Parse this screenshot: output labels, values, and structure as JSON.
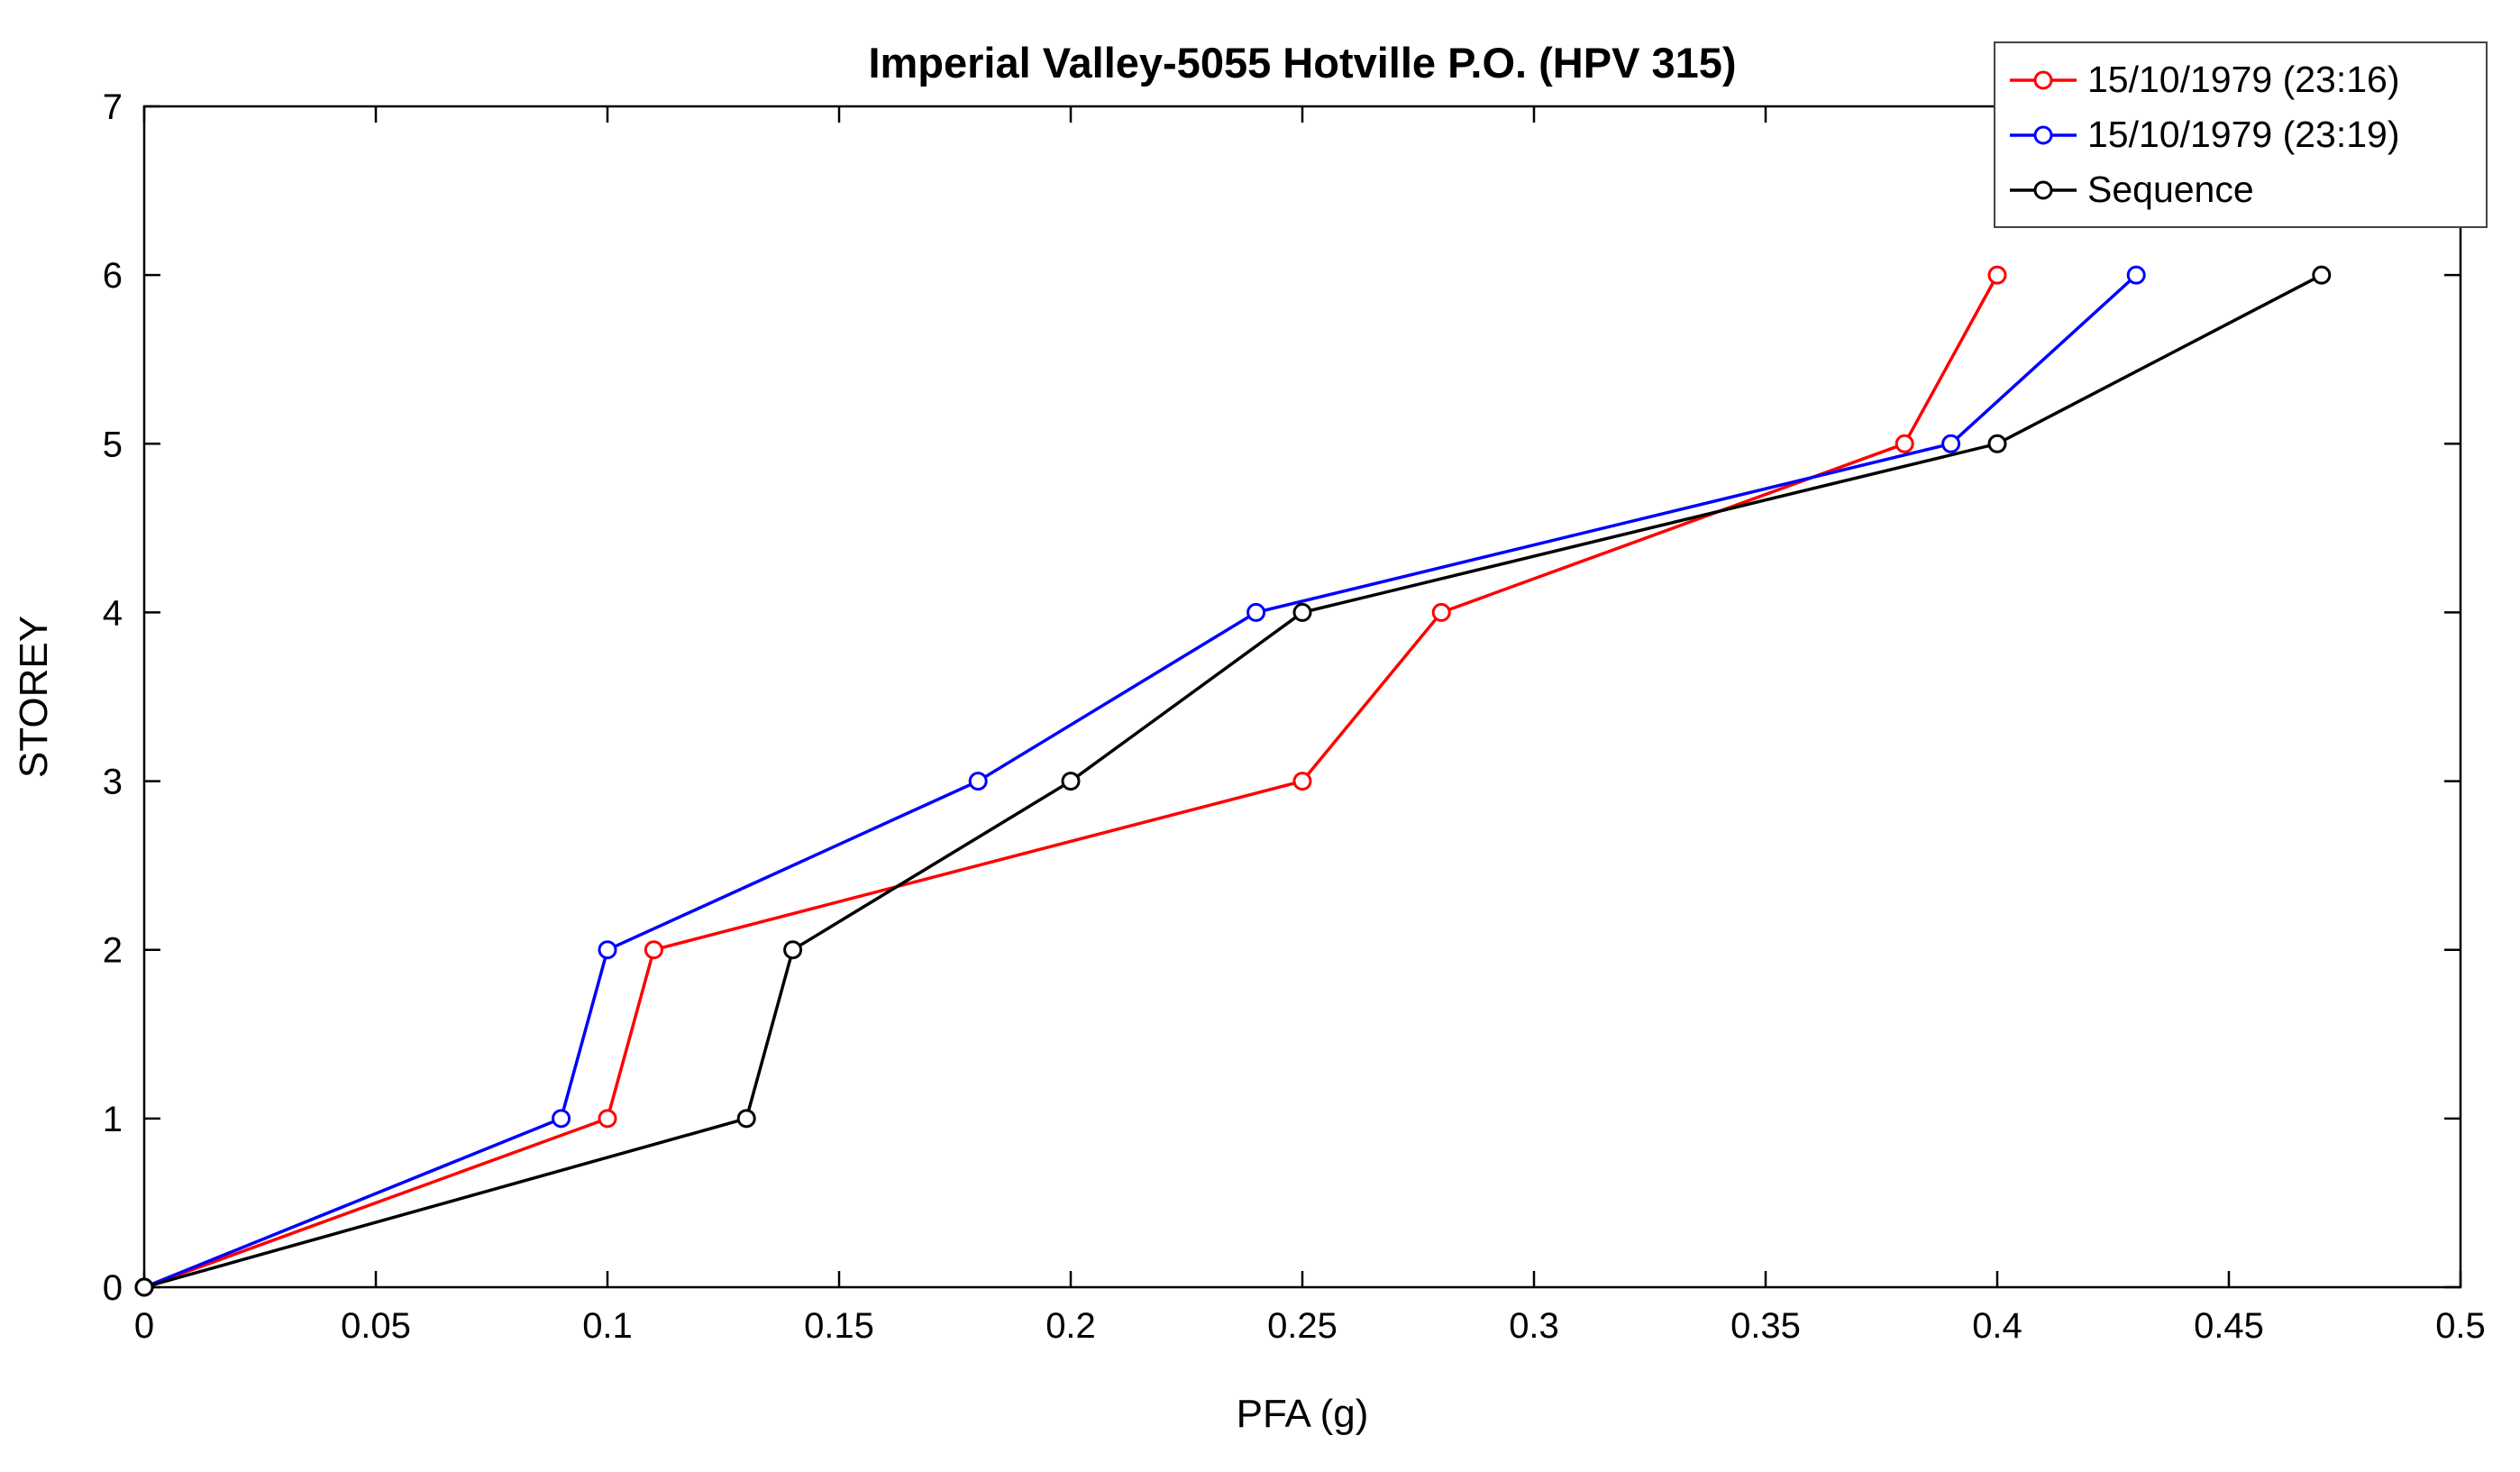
{
  "figure": {
    "title": "Imperial Valley-5055 Hotville P.O. (HPV 315)",
    "xlabel": "PFA (g)",
    "ylabel": "STOREY"
  },
  "chart_data": {
    "type": "line",
    "title": "Imperial Valley-5055 Hotville P.O. (HPV 315)",
    "xlabel": "PFA (g)",
    "ylabel": "STOREY",
    "xlim": [
      0,
      0.5
    ],
    "ylim": [
      0,
      7
    ],
    "x_ticks": [
      0,
      0.05,
      0.1,
      0.15,
      0.2,
      0.25,
      0.3,
      0.35,
      0.4,
      0.45,
      0.5
    ],
    "x_tick_labels": [
      "0",
      "0.05",
      "0.1",
      "0.15",
      "0.2",
      "0.25",
      "0.3",
      "0.35",
      "0.4",
      "0.45",
      "0.5"
    ],
    "y_ticks": [
      0,
      1,
      2,
      3,
      4,
      5,
      6,
      7
    ],
    "y_tick_labels": [
      "0",
      "1",
      "2",
      "3",
      "4",
      "5",
      "6",
      "7"
    ],
    "grid": false,
    "marker": "open-circle",
    "legend_position": "top-right",
    "axes_color": "#000000",
    "background_color": "#ffffff",
    "series": [
      {
        "name": "15/10/1979 (23:16)",
        "color": "#ff0000",
        "storeys": [
          0,
          1,
          2,
          3,
          4,
          5,
          6
        ],
        "pfa": [
          0,
          0.1,
          0.11,
          0.25,
          0.28,
          0.38,
          0.4
        ]
      },
      {
        "name": "15/10/1979 (23:19)",
        "color": "#0000ff",
        "storeys": [
          0,
          1,
          2,
          3,
          4,
          5,
          6
        ],
        "pfa": [
          0,
          0.09,
          0.1,
          0.18,
          0.24,
          0.39,
          0.43
        ]
      },
      {
        "name": "Sequence",
        "color": "#000000",
        "storeys": [
          0,
          1,
          2,
          3,
          4,
          5,
          6
        ],
        "pfa": [
          0,
          0.13,
          0.14,
          0.2,
          0.25,
          0.4,
          0.47
        ]
      }
    ]
  }
}
